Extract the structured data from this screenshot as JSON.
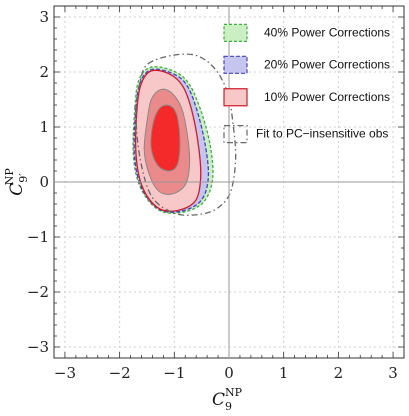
{
  "chart_data": {
    "type": "contour",
    "xlabel": {
      "main": "C",
      "sub": "9",
      "sup": "NP"
    },
    "ylabel": {
      "main": "C",
      "sub": "9′",
      "sup": "NP"
    },
    "xlim": [
      -3.2,
      3.2
    ],
    "ylim": [
      -3.2,
      3.2
    ],
    "xticks": [
      -3,
      -2,
      -1,
      0,
      1,
      2,
      3
    ],
    "yticks": [
      -3,
      -2,
      -1,
      0,
      1,
      2,
      3
    ],
    "xtick_labels": [
      "−3",
      "−2",
      "−1",
      "0",
      "1",
      "2",
      "3"
    ],
    "ytick_labels": [
      "−3",
      "−2",
      "−1",
      "0",
      "1",
      "2",
      "3"
    ],
    "grid": "dotted",
    "legend_position": "top-right",
    "series": [
      {
        "name": "40% Power Corrections",
        "fill": "#c9efc2",
        "stroke": "#44aa44",
        "dash": "3,2",
        "contours": [
          [
            [
              -1.72,
              1.35
            ],
            [
              -1.65,
              1.85
            ],
            [
              -1.45,
              2.08
            ],
            [
              -1.1,
              2.05
            ],
            [
              -0.78,
              1.85
            ],
            [
              -0.55,
              1.4
            ],
            [
              -0.35,
              0.7
            ],
            [
              -0.3,
              0.05
            ],
            [
              -0.48,
              -0.38
            ],
            [
              -0.9,
              -0.56
            ],
            [
              -1.3,
              -0.5
            ],
            [
              -1.62,
              -0.1
            ],
            [
              -1.75,
              0.5
            ]
          ]
        ]
      },
      {
        "name": "20% Power Corrections",
        "fill": "#c5c5f0",
        "stroke": "#4444bb",
        "dash": "4,2",
        "contours": [
          [
            [
              -1.7,
              1.35
            ],
            [
              -1.62,
              1.82
            ],
            [
              -1.43,
              2.04
            ],
            [
              -1.1,
              2.0
            ],
            [
              -0.8,
              1.8
            ],
            [
              -0.6,
              1.35
            ],
            [
              -0.43,
              0.65
            ],
            [
              -0.38,
              0.05
            ],
            [
              -0.53,
              -0.36
            ],
            [
              -0.92,
              -0.54
            ],
            [
              -1.3,
              -0.48
            ],
            [
              -1.6,
              -0.1
            ],
            [
              -1.73,
              0.5
            ]
          ]
        ]
      },
      {
        "name": "10% Power Corrections",
        "fill": "#f8c8c8",
        "stroke": "#cc1b2b",
        "dash": "",
        "contours": [
          [
            [
              -1.68,
              1.35
            ],
            [
              -1.6,
              1.8
            ],
            [
              -1.42,
              2.02
            ],
            [
              -1.1,
              1.97
            ],
            [
              -0.85,
              1.75
            ],
            [
              -0.68,
              1.3
            ],
            [
              -0.55,
              0.6
            ],
            [
              -0.52,
              0.05
            ],
            [
              -0.62,
              -0.35
            ],
            [
              -0.95,
              -0.52
            ],
            [
              -1.3,
              -0.47
            ],
            [
              -1.58,
              -0.1
            ],
            [
              -1.7,
              0.5
            ]
          ],
          [
            [
              -1.5,
              1.1
            ],
            [
              -1.42,
              1.5
            ],
            [
              -1.25,
              1.68
            ],
            [
              -1.05,
              1.62
            ],
            [
              -0.87,
              1.35
            ],
            [
              -0.76,
              0.85
            ],
            [
              -0.72,
              0.35
            ],
            [
              -0.8,
              -0.05
            ],
            [
              -1.05,
              -0.22
            ],
            [
              -1.3,
              -0.15
            ],
            [
              -1.48,
              0.2
            ],
            [
              -1.55,
              0.6
            ]
          ],
          [
            [
              -1.4,
              1.0
            ],
            [
              -1.3,
              1.3
            ],
            [
              -1.15,
              1.4
            ],
            [
              -1.0,
              1.32
            ],
            [
              -0.92,
              1.05
            ],
            [
              -0.9,
              0.6
            ],
            [
              -0.95,
              0.3
            ],
            [
              -1.1,
              0.2
            ],
            [
              -1.3,
              0.3
            ],
            [
              -1.42,
              0.6
            ]
          ]
        ]
      },
      {
        "name": "Fit to PC−insensitive obs",
        "fill": "none",
        "stroke": "#666666",
        "dash": "6,3,1.5,3",
        "contours": [
          [
            [
              -1.48,
              2.15
            ],
            [
              -1.05,
              2.3
            ],
            [
              -0.6,
              2.3
            ],
            [
              -0.25,
              2.05
            ],
            [
              -0.02,
              1.6
            ],
            [
              0.08,
              1.0
            ],
            [
              0.12,
              0.4
            ],
            [
              0.02,
              -0.2
            ],
            [
              -0.25,
              -0.5
            ],
            [
              -0.65,
              -0.6
            ],
            [
              -1.05,
              -0.55
            ],
            [
              -1.42,
              -0.25
            ],
            [
              -1.62,
              0.4
            ],
            [
              -1.7,
              1.2
            ],
            [
              -1.62,
              1.85
            ]
          ]
        ]
      }
    ]
  }
}
